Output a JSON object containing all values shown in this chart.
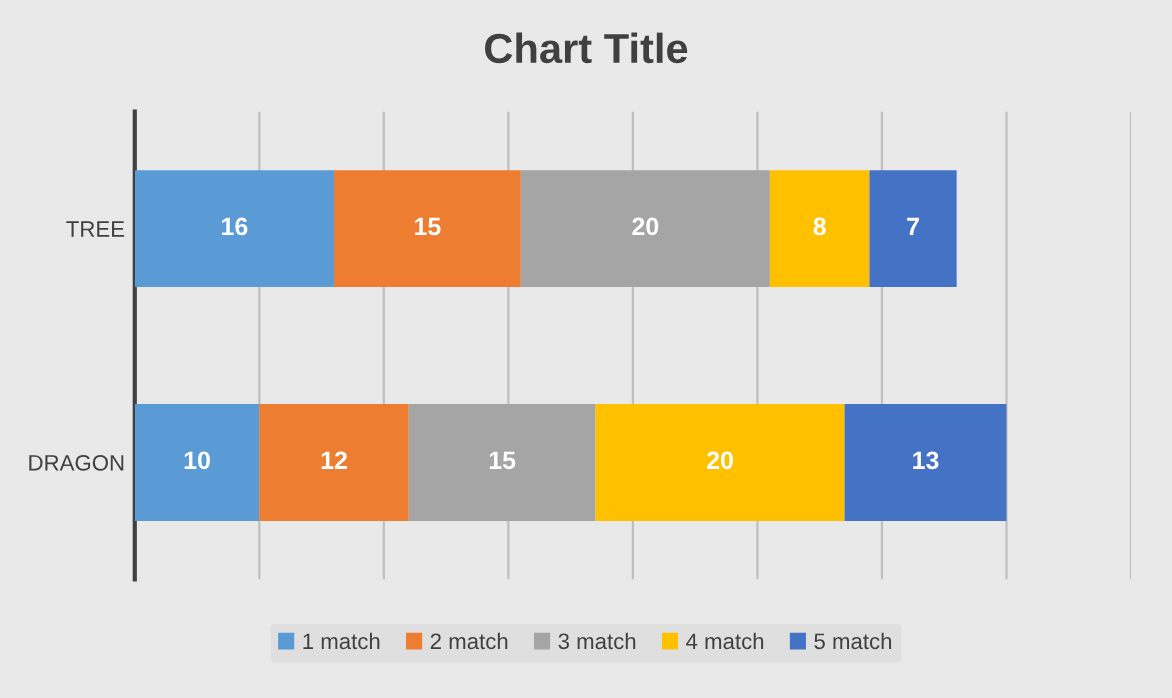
{
  "chart_data": {
    "type": "bar",
    "title": "Chart Title",
    "orientation": "horizontal",
    "stacked": true,
    "categories": [
      "TREE",
      "DRAGON"
    ],
    "series": [
      {
        "name": "1 match",
        "color": "#5b9bd5",
        "values": [
          16,
          10
        ]
      },
      {
        "name": "2 match",
        "color": "#ed7d31",
        "values": [
          15,
          12
        ]
      },
      {
        "name": "3 match",
        "color": "#a5a5a5",
        "values": [
          20,
          15
        ]
      },
      {
        "name": "4 match",
        "color": "#ffc000",
        "values": [
          8,
          20
        ]
      },
      {
        "name": "5 match",
        "color": "#4472c4",
        "values": [
          7,
          13
        ]
      }
    ],
    "xlim": [
      0,
      80
    ],
    "xticks": [
      {
        "value": 0,
        "label": null
      },
      {
        "value": 10,
        "label": null
      },
      {
        "value": 20,
        "label": null
      },
      {
        "value": 30,
        "label": null
      },
      {
        "value": 40,
        "label": null
      },
      {
        "value": 50,
        "label": null
      },
      {
        "value": 60,
        "label": null
      },
      {
        "value": 70,
        "label": null
      },
      {
        "value": 80,
        "label": null
      }
    ],
    "tick_labels": "y",
    "grid": "x",
    "legend": "bottom",
    "data_labels": true
  }
}
